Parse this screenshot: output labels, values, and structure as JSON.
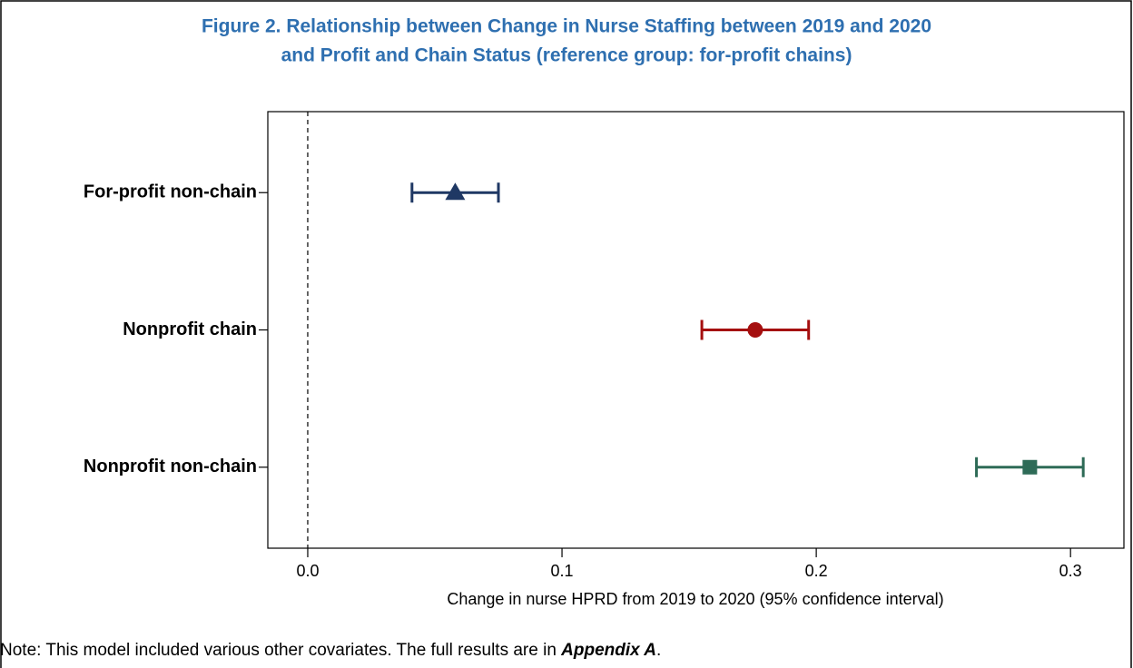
{
  "chart_data": {
    "type": "coefplot",
    "title": [
      "Figure 2.  Relationship between Change in Nurse Staffing between 2019 and 2020",
      "and Profit and Chain Status (reference group: for-profit chains)"
    ],
    "categories": [
      "For-profit  non-chain",
      "Nonprofit  chain",
      "Nonprofit  non-chain"
    ],
    "values": [
      0.058,
      0.176,
      0.284
    ],
    "lower": [
      0.041,
      0.155,
      0.263
    ],
    "upper": [
      0.075,
      0.197,
      0.305
    ],
    "colors": [
      "#1f3864",
      "#a50f0f",
      "#2e6b57"
    ],
    "markers": [
      "triangle",
      "circle",
      "square"
    ],
    "xlabel": "Change in nurse HPRD from 2019 to 2020 (95% confidence interval)",
    "xlim": [
      -0.0157,
      0.321
    ],
    "xticks": [
      {
        "value": 0,
        "label": "0.0"
      },
      0.1,
      0.2,
      0.3
    ],
    "xline": 0
  },
  "note": {
    "text": "Note: This model included various other covariates. The full results are in",
    "emphasis": "Appendix A",
    "end": "."
  }
}
